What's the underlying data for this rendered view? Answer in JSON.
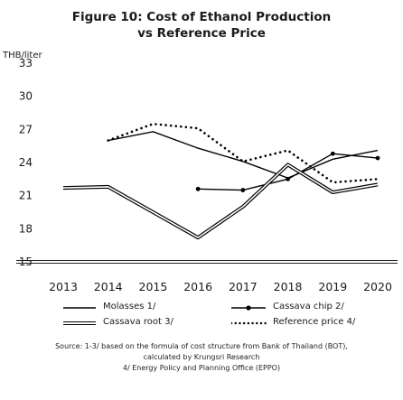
{
  "title_line1": "Figure 10: Cost of Ethanol Production",
  "title_line2": "vs Reference Price",
  "chart_data": {
    "type": "line",
    "ylabel": "THB/liter",
    "x": [
      "2013",
      "2014",
      "2015",
      "2016",
      "2017",
      "2018",
      "2019",
      "2020"
    ],
    "ylim": [
      15,
      33
    ],
    "yticks": [
      "33",
      "30",
      "27",
      "24",
      "21",
      "18",
      "15"
    ],
    "series": [
      {
        "name": "Molasses 1/",
        "style": "solid",
        "color": "#000000",
        "values": [
          null,
          26.0,
          26.8,
          25.3,
          24.1,
          22.6,
          24.3,
          25.1
        ]
      },
      {
        "name": "Cassava chip 2/",
        "style": "solid-dot",
        "color": "#000000",
        "values": [
          null,
          null,
          null,
          21.6,
          21.5,
          22.5,
          24.8,
          24.4
        ]
      },
      {
        "name": "Cassava root 3/",
        "style": "double",
        "color": "#000000",
        "values": [
          21.7,
          21.8,
          19.5,
          17.2,
          20.0,
          23.8,
          21.3,
          22.0
        ]
      },
      {
        "name": "Reference price 4/",
        "style": "dotted",
        "color": "#000000",
        "values": [
          null,
          26.0,
          27.5,
          27.1,
          24.1,
          25.1,
          22.2,
          22.5
        ]
      }
    ]
  },
  "source_line1": "Source: 1-3/ based on the formula of cost structure from Bank of Thailand (BOT),",
  "source_line2": "calculated by Krungsri Research",
  "source_line3": "4/ Energy Policy and Planning Office (EPPO)"
}
